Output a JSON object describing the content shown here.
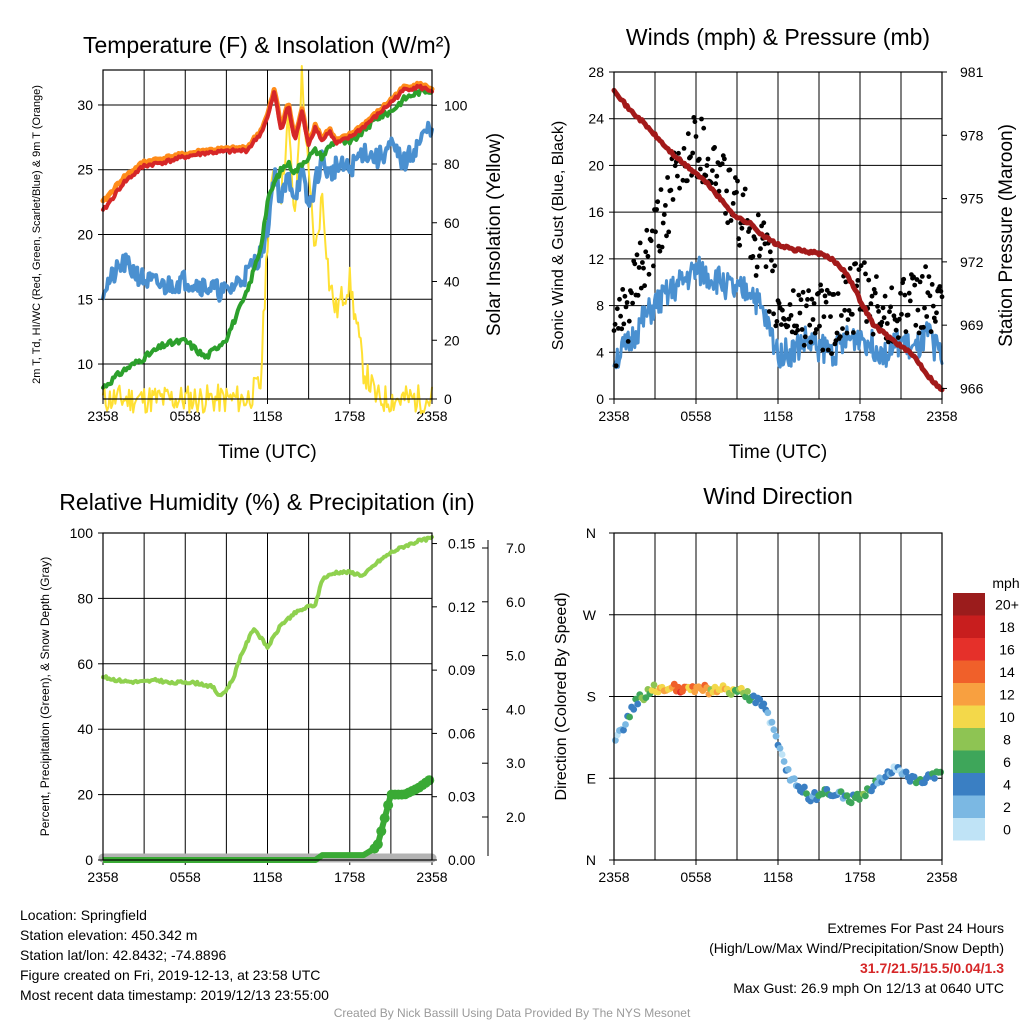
{
  "chart_data": [
    {
      "type": "line",
      "title": "Temperature (F) & Insolation (W/m²)",
      "xlabel": "Time (UTC)",
      "ylabel": "2m T, Td, HI/WC (Red, Green, Scarlet/Blue) & 9m T (Orange)",
      "y2label": "Solar Insolation (Yellow)",
      "x_ticks": [
        "2358",
        "0558",
        "1158",
        "1758",
        "2358"
      ],
      "ylim": [
        7.3,
        32.7
      ],
      "y_ticks": [
        10,
        15,
        20,
        25,
        30
      ],
      "y2lim": [
        0,
        112
      ],
      "y2_ticks": [
        0,
        20,
        40,
        60,
        80,
        100
      ],
      "grid": true,
      "x_hours": [
        0,
        1.5,
        3,
        4.5,
        6,
        7.5,
        9,
        10.5,
        11.5,
        12,
        12.5,
        13,
        13.5,
        14,
        14.5,
        15,
        15.5,
        16,
        16.5,
        17,
        18,
        19,
        20,
        21,
        22,
        23,
        24
      ],
      "series": [
        {
          "color": "#d62728",
          "axis": "left",
          "values": [
            21.8,
            24.0,
            25.3,
            25.6,
            26.0,
            26.3,
            26.4,
            26.5,
            27.8,
            29.0,
            31.0,
            28.0,
            30.0,
            27.2,
            29.5,
            27.0,
            28.3,
            27.2,
            28.0,
            27.0,
            27.5,
            28.3,
            29.2,
            30.2,
            31.2,
            31.4,
            31.1
          ]
        },
        {
          "color": "#ff8c1a",
          "axis": "left",
          "values": [
            22.5,
            24.4,
            25.6,
            25.9,
            26.2,
            26.5,
            26.6,
            26.7,
            28.0,
            29.2,
            31.2,
            28.3,
            30.2,
            27.4,
            29.7,
            27.2,
            28.5,
            27.4,
            28.2,
            27.2,
            27.7,
            28.5,
            29.4,
            30.4,
            31.4,
            31.6,
            31.3
          ]
        },
        {
          "color": "#2ca02c",
          "axis": "left",
          "values": [
            8.2,
            9.5,
            10.5,
            11.5,
            11.8,
            10.5,
            12.0,
            15.5,
            19.0,
            22.5,
            24.0,
            25.0,
            25.5,
            24.8,
            25.5,
            26.0,
            26.5,
            26.0,
            26.8,
            27.3,
            27.0,
            28.0,
            29.0,
            29.5,
            30.5,
            31.0,
            31.2
          ]
        },
        {
          "color": "#4a90d0",
          "axis": "left",
          "values": [
            15.8,
            17.8,
            16.5,
            16.0,
            16.5,
            16.0,
            15.5,
            17.0,
            18.5,
            20.5,
            25.0,
            22.5,
            24.5,
            23.0,
            24.8,
            22.0,
            24.0,
            26.0,
            24.5,
            25.3,
            25.0,
            26.5,
            25.8,
            26.8,
            25.5,
            27.0,
            28.5
          ]
        },
        {
          "color": "#ffe033",
          "axis": "right",
          "values": [
            0,
            0,
            0,
            0,
            0,
            0,
            0,
            0,
            5,
            55,
            80,
            70,
            95,
            60,
            110,
            75,
            50,
            70,
            40,
            30,
            40,
            10,
            0,
            0,
            0,
            0,
            0
          ]
        }
      ]
    },
    {
      "type": "line",
      "title": "Winds (mph) & Pressure (mb)",
      "xlabel": "Time (UTC)",
      "ylabel": "Sonic Wind & Gust (Blue, Black)",
      "y2label": "Station Pressure (Maroon)",
      "x_ticks": [
        "2358",
        "0558",
        "1158",
        "1758",
        "2358"
      ],
      "ylim": [
        0,
        28
      ],
      "y_ticks": [
        0,
        4,
        8,
        12,
        16,
        20,
        24,
        28
      ],
      "y2lim": [
        965.5,
        981
      ],
      "y2_ticks": [
        966,
        969,
        972,
        975,
        978,
        981
      ],
      "grid": true,
      "x_hours": [
        0,
        1,
        2,
        3,
        4,
        5,
        6,
        7,
        8,
        9,
        10,
        11,
        12,
        13,
        14,
        15,
        16,
        17,
        18,
        19,
        20,
        21,
        22,
        23,
        24
      ],
      "series": [
        {
          "color": "#4a90d0",
          "axis": "left",
          "values": [
            3.5,
            4.5,
            6.5,
            8.0,
            9.0,
            10.0,
            11.0,
            10.5,
            10.0,
            9.0,
            9.5,
            7.0,
            4.0,
            4.0,
            5.0,
            4.5,
            4.0,
            5.0,
            5.5,
            4.5,
            4.0,
            5.0,
            4.0,
            5.5,
            3.5
          ]
        },
        {
          "color": "#000000",
          "axis": "left",
          "values": [
            5.0,
            7.5,
            11.0,
            13.5,
            17.0,
            20.0,
            22.0,
            20.5,
            18.5,
            16.0,
            14.5,
            12.0,
            7.5,
            7.0,
            7.5,
            7.0,
            6.5,
            8.0,
            9.0,
            8.0,
            7.0,
            8.5,
            7.5,
            9.0,
            6.5
          ]
        },
        {
          "color": "#a31a1a",
          "axis": "right",
          "values": [
            980.2,
            979.3,
            978.7,
            978.0,
            977.3,
            976.7,
            976.2,
            975.6,
            974.8,
            974.1,
            973.8,
            973.2,
            972.8,
            972.6,
            972.5,
            972.4,
            972.1,
            971.5,
            970.2,
            969.0,
            968.5,
            968.0,
            967.5,
            966.6,
            965.9
          ]
        }
      ]
    },
    {
      "type": "line",
      "title": "Relative Humidity (%) & Precipitation (in)",
      "ylabel": "Percent, Precipitation (Green), & Snow Depth (Gray)",
      "x_ticks": [
        "2358",
        "0558",
        "1158",
        "1758",
        "2358"
      ],
      "ylim": [
        0,
        100
      ],
      "y_ticks": [
        0,
        20,
        40,
        60,
        80,
        100
      ],
      "y2_ticks": [
        "0.00",
        "0.03",
        "0.06",
        "0.09",
        "0.12",
        "0.15"
      ],
      "y3_ticks": [
        "2.0",
        "3.0",
        "4.0",
        "5.0",
        "6.0",
        "7.0"
      ],
      "grid": true,
      "x_hours": [
        0,
        1,
        2,
        3,
        4,
        5,
        6,
        7,
        8,
        8.5,
        9,
        9.5,
        10,
        11,
        12,
        13,
        14,
        15,
        15.5,
        16,
        17,
        18,
        19,
        20,
        21,
        22,
        23,
        24
      ],
      "series": [
        {
          "color": "#8fd14f",
          "axis": "left",
          "values": [
            56.0,
            55.0,
            54.5,
            54.5,
            55.0,
            54.0,
            54.5,
            54.0,
            53.0,
            50.0,
            52.0,
            55.5,
            62.0,
            71.0,
            65.0,
            72.0,
            75.5,
            77.5,
            78.0,
            86.0,
            88.0,
            88.0,
            87.0,
            91.0,
            94.0,
            96.0,
            97.5,
            98.5
          ]
        },
        {
          "color": "#3aaa35",
          "axis": "left",
          "values": [
            0,
            0,
            0,
            0,
            0,
            0,
            0,
            0,
            0,
            0,
            0,
            0,
            0,
            0,
            0,
            0,
            0,
            0,
            0,
            1.5,
            1.5,
            1.5,
            1.5,
            4.0,
            20.0,
            20.0,
            22.0,
            25.0
          ]
        },
        {
          "color": "#b3b3b3",
          "axis": "left",
          "values": [
            0,
            0,
            0,
            0,
            0,
            0,
            0,
            0,
            0,
            0,
            0,
            0,
            0,
            0,
            0,
            0,
            0,
            0,
            0,
            0,
            0,
            0,
            0,
            0,
            0,
            0,
            0,
            0
          ]
        }
      ]
    },
    {
      "type": "scatter",
      "title": "Wind Direction",
      "ylabel": "Direction (Colored By Speed)",
      "x_ticks": [
        "2358",
        "0558",
        "1158",
        "1758",
        "2358"
      ],
      "y_ticks": [
        "N",
        "E",
        "S",
        "W",
        "N"
      ],
      "ylim": [
        0,
        360
      ],
      "grid": true,
      "legend": {
        "title": "mph",
        "position": "right",
        "labels": [
          "20+",
          "18",
          "16",
          "14",
          "12",
          "10",
          "8",
          "6",
          "4",
          "2",
          "0"
        ],
        "colors": [
          "#9b1c1c",
          "#c81e1e",
          "#e5302a",
          "#f0602a",
          "#f8a040",
          "#f3d84a",
          "#8ec453",
          "#3ea65a",
          "#3a7fc3",
          "#7bb8e3",
          "#bfe3f6"
        ]
      },
      "x_hours": [
        0,
        0.3,
        0.6,
        1,
        1.4,
        1.8,
        2.2,
        2.6,
        3,
        3.5,
        4,
        4.5,
        5,
        5.5,
        6,
        6.5,
        7,
        7.5,
        8,
        8.5,
        9,
        9.5,
        10,
        10.5,
        11,
        11.2,
        11.5,
        12,
        12.5,
        13,
        13.5,
        14,
        14.5,
        15,
        15.5,
        16,
        16.5,
        17,
        17.5,
        18,
        18.5,
        19,
        19.5,
        20,
        20.5,
        21,
        21.5,
        22,
        22.5,
        23,
        23.5,
        24
      ],
      "direction_deg": [
        125,
        135,
        145,
        155,
        168,
        178,
        181,
        185,
        190,
        188,
        187,
        189,
        186,
        188,
        187,
        189,
        186,
        188,
        187,
        185,
        187,
        183,
        180,
        175,
        170,
        162,
        150,
        125,
        102,
        90,
        80,
        75,
        68,
        72,
        74,
        70,
        73,
        67,
        68,
        70,
        75,
        82,
        88,
        95,
        100,
        95,
        92,
        90,
        88,
        92,
        95,
        98
      ],
      "speed_mph": [
        3,
        2,
        4,
        5,
        6,
        7,
        7,
        9,
        10,
        12,
        13,
        14,
        15,
        12,
        13,
        14,
        12,
        11,
        12,
        10,
        9,
        8,
        6,
        5,
        5,
        4,
        3,
        3,
        4,
        3,
        5,
        6,
        4,
        7,
        6,
        5,
        4,
        6,
        5,
        8,
        6,
        4,
        5,
        4,
        3,
        2,
        5,
        6,
        7,
        5,
        6,
        4
      ]
    }
  ],
  "info": {
    "location": "Location: Springfield",
    "elevation": "Station elevation: 450.342 m",
    "latlon": "Station lat/lon: 42.8432; -74.8896",
    "created": "Figure created on Fri, 2019-12-13, at 23:58 UTC",
    "recent": "Most recent data timestamp: 2019/12/13 23:55:00"
  },
  "extremes": {
    "title": "Extremes For Past 24 Hours",
    "subtitle": "(High/Low/Max Wind/Precipitation/Snow Depth)",
    "values": "31.7/21.5/15.5/0.04/1.3",
    "gust": "Max Gust: 26.9 mph On 12/13 at 0640 UTC"
  },
  "credit": "Created By Nick Bassill Using Data Provided By The NYS Mesonet"
}
